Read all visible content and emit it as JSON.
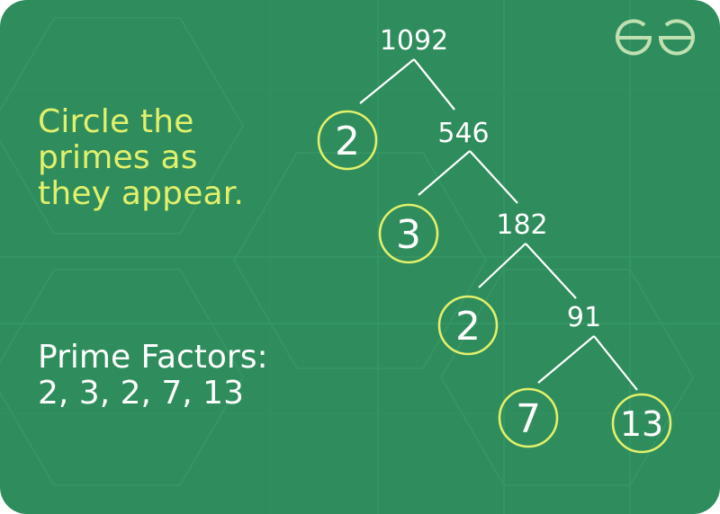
{
  "instruction_lines": [
    "Circle the",
    "primes as",
    "they appear."
  ],
  "result": {
    "heading": "Prime Factors:",
    "factors_text": "2, 3, 2, 7, 13"
  },
  "tree": {
    "root": "1092",
    "level1": {
      "prime": "2",
      "composite": "546"
    },
    "level2": {
      "prime": "3",
      "composite": "182"
    },
    "level3": {
      "prime": "2",
      "composite": "91"
    },
    "level4": {
      "prime_left": "7",
      "prime_right": "13"
    }
  },
  "colors": {
    "background": "#2f8d5d",
    "highlight_text": "#e2f06b",
    "prime_circle": "#e2f06b",
    "text": "#ffffff",
    "logo": "#bfe0b0"
  },
  "logo_icon": "geeksforgeeks-logo"
}
